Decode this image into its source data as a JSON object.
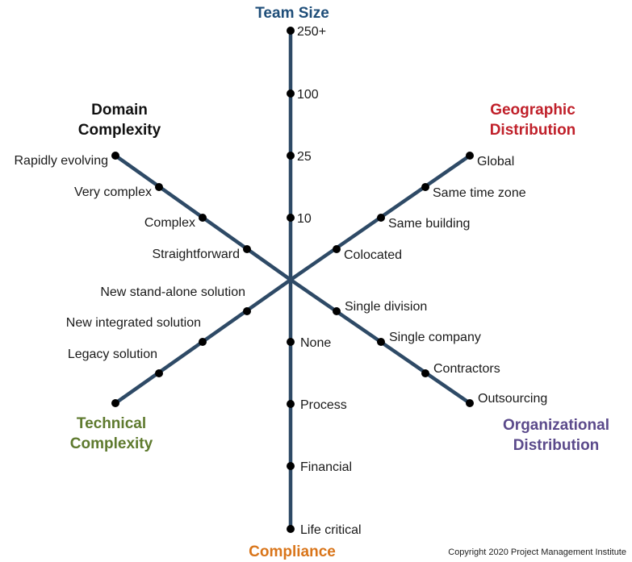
{
  "axes": [
    {
      "id": "team-size",
      "title_lines": [
        "Team Size"
      ],
      "color": "#1f4e79",
      "ticks": [
        "10",
        "25",
        "100",
        "250+"
      ]
    },
    {
      "id": "geographic-distribution",
      "title_lines": [
        "Geographic",
        "Distribution"
      ],
      "color": "#c0202a",
      "ticks": [
        "Colocated",
        "Same building",
        "Same time zone",
        "Global"
      ]
    },
    {
      "id": "organizational-distribution",
      "title_lines": [
        "Organizational",
        "Distribution"
      ],
      "color": "#5b4a8b",
      "ticks": [
        "Single division",
        "Single company",
        "Contractors",
        "Outsourcing"
      ]
    },
    {
      "id": "compliance",
      "title_lines": [
        "Compliance"
      ],
      "color": "#d9751a",
      "ticks": [
        "None",
        "Process",
        "Financial",
        "Life critical"
      ]
    },
    {
      "id": "technical-complexity",
      "title_lines": [
        "Technical",
        "Complexity"
      ],
      "color": "#5e7a2e",
      "ticks": [
        "New stand-alone solution",
        "New integrated solution",
        "Legacy solution",
        ""
      ]
    },
    {
      "id": "domain-complexity",
      "title_lines": [
        "Domain",
        "Complexity"
      ],
      "color": "#111111",
      "ticks": [
        "Straightforward",
        "Complex",
        "Very complex",
        "Rapidly evolving"
      ]
    }
  ],
  "copyright": "Copyright 2020 Project Management Institute"
}
